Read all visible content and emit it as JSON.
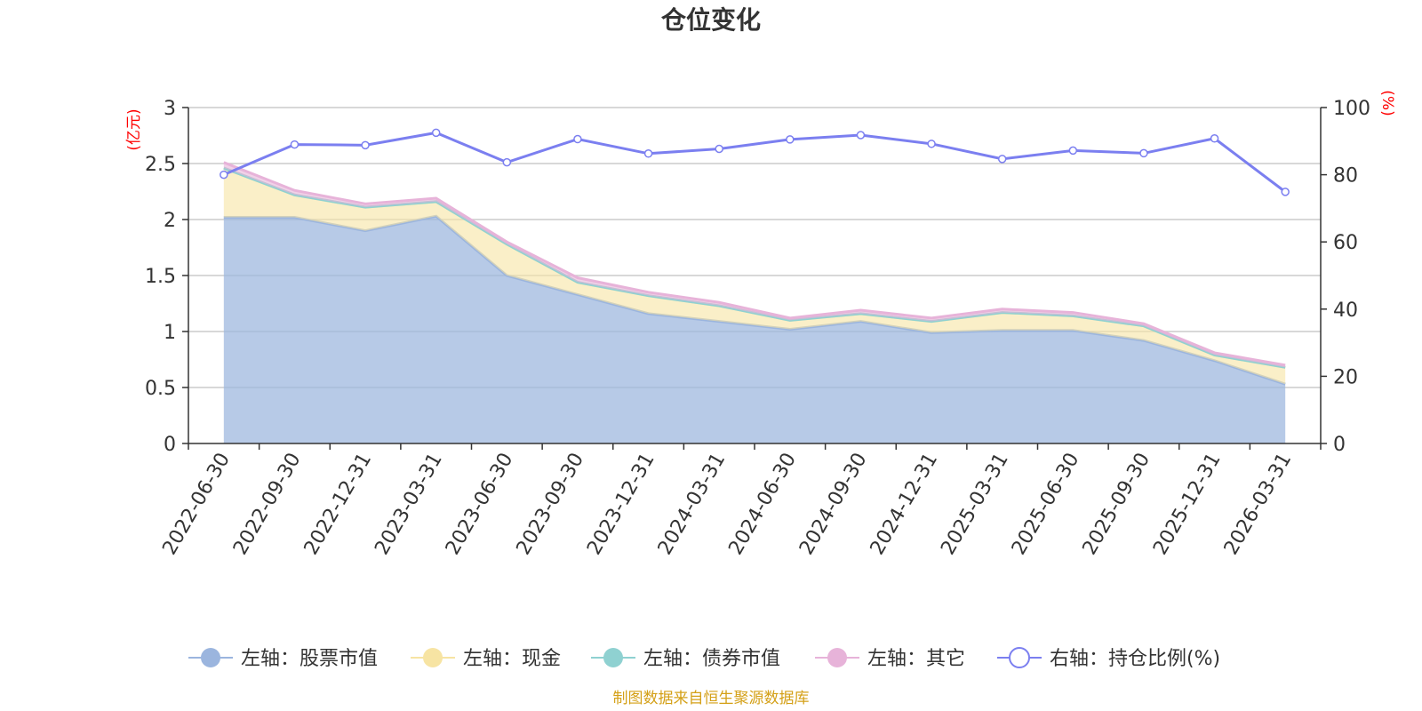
{
  "chart_data": {
    "type": "area",
    "title": "仓位变化",
    "left_axis_unit": "(亿元)",
    "right_axis_unit": "(%)",
    "categories": [
      "2022-06-30",
      "2022-09-30",
      "2022-12-31",
      "2023-03-31",
      "2023-06-30",
      "2023-09-30",
      "2023-12-31",
      "2024-03-31",
      "2024-06-30",
      "2024-09-30",
      "2024-12-31",
      "2025-03-31",
      "2025-06-30",
      "2025-09-30",
      "2025-12-31",
      "2026-03-31"
    ],
    "left_ylim": [
      0,
      3
    ],
    "left_ticks": [
      "0",
      "0.5",
      "1",
      "1.5",
      "2",
      "2.5",
      "3"
    ],
    "right_ylim": [
      0,
      100
    ],
    "right_ticks": [
      "0",
      "20",
      "40",
      "60",
      "80",
      "100"
    ],
    "stacked_series": [
      {
        "name": "左轴：股票市值",
        "color": "#9bb5de",
        "values": [
          2.02,
          2.02,
          1.9,
          2.03,
          1.5,
          1.33,
          1.16,
          1.09,
          1.02,
          1.09,
          0.99,
          1.01,
          1.01,
          0.92,
          0.74,
          0.53
        ]
      },
      {
        "name": "左轴：现金",
        "color": "#f7e4a3",
        "values": [
          0.44,
          0.2,
          0.21,
          0.13,
          0.28,
          0.11,
          0.16,
          0.14,
          0.08,
          0.07,
          0.1,
          0.16,
          0.13,
          0.13,
          0.05,
          0.15
        ]
      },
      {
        "name": "左轴：债券市值",
        "color": "#8fd1d1",
        "values": [
          0,
          0,
          0,
          0,
          0,
          0,
          0,
          0,
          0,
          0,
          0,
          0,
          0,
          0,
          0,
          0
        ]
      },
      {
        "name": "左轴：其它",
        "color": "#e7b3d9",
        "values": [
          0.05,
          0.04,
          0.03,
          0.03,
          0.02,
          0.04,
          0.03,
          0.03,
          0.02,
          0.03,
          0.03,
          0.03,
          0.03,
          0.02,
          0.02,
          0.02
        ]
      }
    ],
    "line_series": {
      "name": "右轴：持仓比例(%)",
      "color": "#7b7ff0",
      "values": [
        80.0,
        89.0,
        88.8,
        92.5,
        83.7,
        90.6,
        86.3,
        87.7,
        90.5,
        91.8,
        89.2,
        84.7,
        87.2,
        86.4,
        90.8,
        74.9
      ]
    },
    "legend_position": "bottom"
  },
  "source_note": "制图数据来自恒生聚源数据库"
}
